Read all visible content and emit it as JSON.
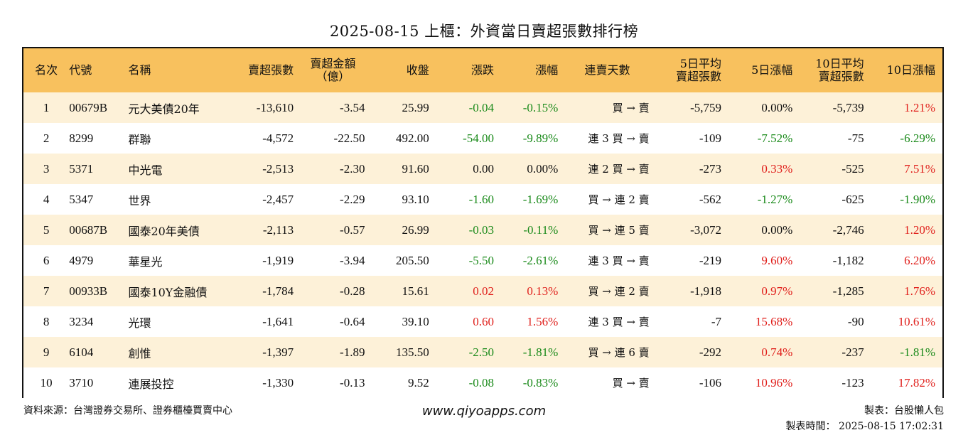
{
  "title": "2025-08-15 上櫃：外資當日賣超張數排行榜",
  "headers": {
    "rank": "名次",
    "code": "代號",
    "name": "名稱",
    "sell_lots": "賣超張數",
    "sell_amount_line1": "賣超金額",
    "sell_amount_line2": "（億）",
    "close": "收盤",
    "change": "漲跌",
    "change_pct": "漲幅",
    "streak": "連賣天數",
    "avg5_line1": "5日平均",
    "avg5_line2": "賣超張數",
    "chg5": "5日漲幅",
    "avg10_line1": "10日平均",
    "avg10_line2": "賣超張數",
    "chg10": "10日漲幅"
  },
  "rows": [
    {
      "rank": "1",
      "code": "00679B",
      "name": "元大美債20年",
      "sell_lots": "-13,610",
      "sell_amount": "-3.54",
      "close": "25.99",
      "change": "-0.04",
      "change_pct": "-0.15%",
      "streak": "買 → 賣",
      "avg5": "-5,759",
      "chg5": "0.00%",
      "avg10": "-5,739",
      "chg10": "1.21%"
    },
    {
      "rank": "2",
      "code": "8299",
      "name": "群聯",
      "sell_lots": "-4,572",
      "sell_amount": "-22.50",
      "close": "492.00",
      "change": "-54.00",
      "change_pct": "-9.89%",
      "streak": "連 3 買 → 賣",
      "avg5": "-109",
      "chg5": "-7.52%",
      "avg10": "-75",
      "chg10": "-6.29%"
    },
    {
      "rank": "3",
      "code": "5371",
      "name": "中光電",
      "sell_lots": "-2,513",
      "sell_amount": "-2.30",
      "close": "91.60",
      "change": "0.00",
      "change_pct": "0.00%",
      "streak": "連 2 買 → 賣",
      "avg5": "-273",
      "chg5": "0.33%",
      "avg10": "-525",
      "chg10": "7.51%"
    },
    {
      "rank": "4",
      "code": "5347",
      "name": "世界",
      "sell_lots": "-2,457",
      "sell_amount": "-2.29",
      "close": "93.10",
      "change": "-1.60",
      "change_pct": "-1.69%",
      "streak": "買 → 連 2 賣",
      "avg5": "-562",
      "chg5": "-1.27%",
      "avg10": "-625",
      "chg10": "-1.90%"
    },
    {
      "rank": "5",
      "code": "00687B",
      "name": "國泰20年美債",
      "sell_lots": "-2,113",
      "sell_amount": "-0.57",
      "close": "26.99",
      "change": "-0.03",
      "change_pct": "-0.11%",
      "streak": "買 → 連 5 賣",
      "avg5": "-3,072",
      "chg5": "0.00%",
      "avg10": "-2,746",
      "chg10": "1.20%"
    },
    {
      "rank": "6",
      "code": "4979",
      "name": "華星光",
      "sell_lots": "-1,919",
      "sell_amount": "-3.94",
      "close": "205.50",
      "change": "-5.50",
      "change_pct": "-2.61%",
      "streak": "連 3 買 → 賣",
      "avg5": "-219",
      "chg5": "9.60%",
      "avg10": "-1,182",
      "chg10": "6.20%"
    },
    {
      "rank": "7",
      "code": "00933B",
      "name": "國泰10Y金融債",
      "sell_lots": "-1,784",
      "sell_amount": "-0.28",
      "close": "15.61",
      "change": "0.02",
      "change_pct": "0.13%",
      "streak": "買 → 連 2 賣",
      "avg5": "-1,918",
      "chg5": "0.97%",
      "avg10": "-1,285",
      "chg10": "1.76%"
    },
    {
      "rank": "8",
      "code": "3234",
      "name": "光環",
      "sell_lots": "-1,641",
      "sell_amount": "-0.64",
      "close": "39.10",
      "change": "0.60",
      "change_pct": "1.56%",
      "streak": "連 3 買 → 賣",
      "avg5": "-7",
      "chg5": "15.68%",
      "avg10": "-90",
      "chg10": "10.61%"
    },
    {
      "rank": "9",
      "code": "6104",
      "name": "創惟",
      "sell_lots": "-1,397",
      "sell_amount": "-1.89",
      "close": "135.50",
      "change": "-2.50",
      "change_pct": "-1.81%",
      "streak": "買 → 連 6 賣",
      "avg5": "-292",
      "chg5": "0.74%",
      "avg10": "-237",
      "chg10": "-1.81%"
    },
    {
      "rank": "10",
      "code": "3710",
      "name": "連展投控",
      "sell_lots": "-1,330",
      "sell_amount": "-0.13",
      "close": "9.52",
      "change": "-0.08",
      "change_pct": "-0.83%",
      "streak": "買 → 賣",
      "avg5": "-106",
      "chg5": "10.96%",
      "avg10": "-123",
      "chg10": "17.82%"
    }
  ],
  "colors": {
    "header_bg": "#f8c15e",
    "odd_row_bg": "#fdf1d8",
    "positive": "#e0201c",
    "negative": "#1a8a1a"
  },
  "footer": {
    "source": "資料來源：台灣證券交易所、證券櫃檯買賣中心",
    "website": "www.qiyoapps.com",
    "maker": "製表：台股懶人包",
    "made_time": "製表時間： 2025-08-15 17:02:31"
  }
}
